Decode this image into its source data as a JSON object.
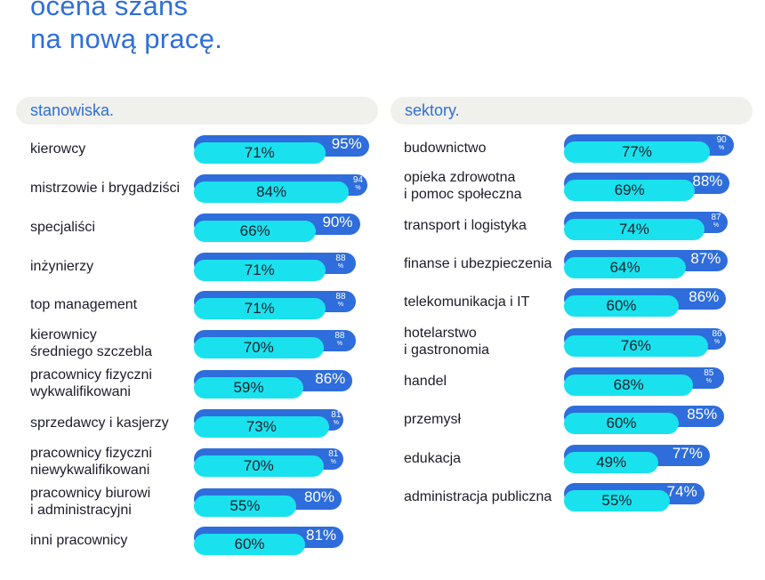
{
  "title_line1": "ocena szans",
  "title_line2": "na nową pracę.",
  "left_header": "stanowiska.",
  "right_header": "sektory.",
  "colors": {
    "outer_bar": "#2e6ddb",
    "inner_bar": "#19e2ee",
    "title": "#2f6fd9",
    "header_bg": "#f0f0ed"
  },
  "chart_data": [
    {
      "type": "bar",
      "orientation": "horizontal",
      "title": "stanowiska.",
      "series_values_unit": "%",
      "rows": [
        {
          "label": [
            "kierowcy"
          ],
          "inner": 71,
          "outer": 95,
          "inner_text": "71%",
          "outer_text": "95%"
        },
        {
          "label": [
            "mistrzowie i brygadziści"
          ],
          "inner": 84,
          "outer": 94,
          "inner_text": "84%",
          "outer_text": "94",
          "outer_pct": "%"
        },
        {
          "label": [
            "specjaliści"
          ],
          "inner": 66,
          "outer": 90,
          "inner_text": "66%",
          "outer_text": "90%"
        },
        {
          "label": [
            "inżynierzy"
          ],
          "inner": 71,
          "outer": 88,
          "inner_text": "71%",
          "outer_text": "88",
          "outer_pct": "%"
        },
        {
          "label": [
            "top management"
          ],
          "inner": 71,
          "outer": 88,
          "inner_text": "71%",
          "outer_text": "88",
          "outer_pct": "%"
        },
        {
          "label": [
            "kierownicy",
            "średniego szczebla"
          ],
          "inner": 70,
          "outer": 88,
          "inner_text": "70%",
          "outer_text": "88",
          "outer_pct": "%"
        },
        {
          "label": [
            "pracownicy fizyczni",
            "wykwalifikowani"
          ],
          "inner": 59,
          "outer": 86,
          "inner_text": "59%",
          "outer_text": "86%"
        },
        {
          "label": [
            "sprzedawcy i kasjerzy"
          ],
          "inner": 73,
          "outer": 81,
          "inner_text": "73%",
          "outer_text": "81",
          "outer_pct": "%"
        },
        {
          "label": [
            "pracownicy fizyczni",
            "niewykwalifikowani"
          ],
          "inner": 70,
          "outer": 81,
          "inner_text": "70%",
          "outer_text": "81",
          "outer_pct": "%"
        },
        {
          "label": [
            "pracownicy biurowi",
            "i administracyjni"
          ],
          "inner": 55,
          "outer": 80,
          "inner_text": "55%",
          "outer_text": "80%"
        },
        {
          "label": [
            "inni pracownicy"
          ],
          "inner": 60,
          "outer": 81,
          "inner_text": "60%",
          "outer_text": "81%"
        }
      ]
    },
    {
      "type": "bar",
      "orientation": "horizontal",
      "title": "sektory.",
      "series_values_unit": "%",
      "rows": [
        {
          "label": [
            "budownictwo"
          ],
          "inner": 77,
          "outer": 90,
          "inner_text": "77%",
          "outer_text": "90",
          "outer_pct": "%"
        },
        {
          "label": [
            "opieka zdrowotna",
            "i pomoc społeczna"
          ],
          "inner": 69,
          "outer": 88,
          "inner_text": "69%",
          "outer_text": "88%"
        },
        {
          "label": [
            "transport i logistyka"
          ],
          "inner": 74,
          "outer": 87,
          "inner_text": "74%",
          "outer_text": "87",
          "outer_pct": "%"
        },
        {
          "label": [
            "finanse i ubezpieczenia"
          ],
          "inner": 64,
          "outer": 87,
          "inner_text": "64%",
          "outer_text": "87%"
        },
        {
          "label": [
            "telekomunikacja i IT"
          ],
          "inner": 60,
          "outer": 86,
          "inner_text": "60%",
          "outer_text": "86%"
        },
        {
          "label": [
            "hotelarstwo",
            "i gastronomia"
          ],
          "inner": 76,
          "outer": 86,
          "inner_text": "76%",
          "outer_text": "86",
          "outer_pct": "%"
        },
        {
          "label": [
            "handel"
          ],
          "inner": 68,
          "outer": 85,
          "inner_text": "68%",
          "outer_text": "85",
          "outer_pct": "%"
        },
        {
          "label": [
            "przemysł"
          ],
          "inner": 60,
          "outer": 85,
          "inner_text": "60%",
          "outer_text": "85%"
        },
        {
          "label": [
            "edukacja"
          ],
          "inner": 49,
          "outer": 77,
          "inner_text": "49%",
          "outer_text": "77%"
        },
        {
          "label": [
            "administracja publiczna"
          ],
          "inner": 55,
          "outer": 74,
          "inner_text": "55%",
          "outer_text": "74%"
        }
      ]
    }
  ]
}
